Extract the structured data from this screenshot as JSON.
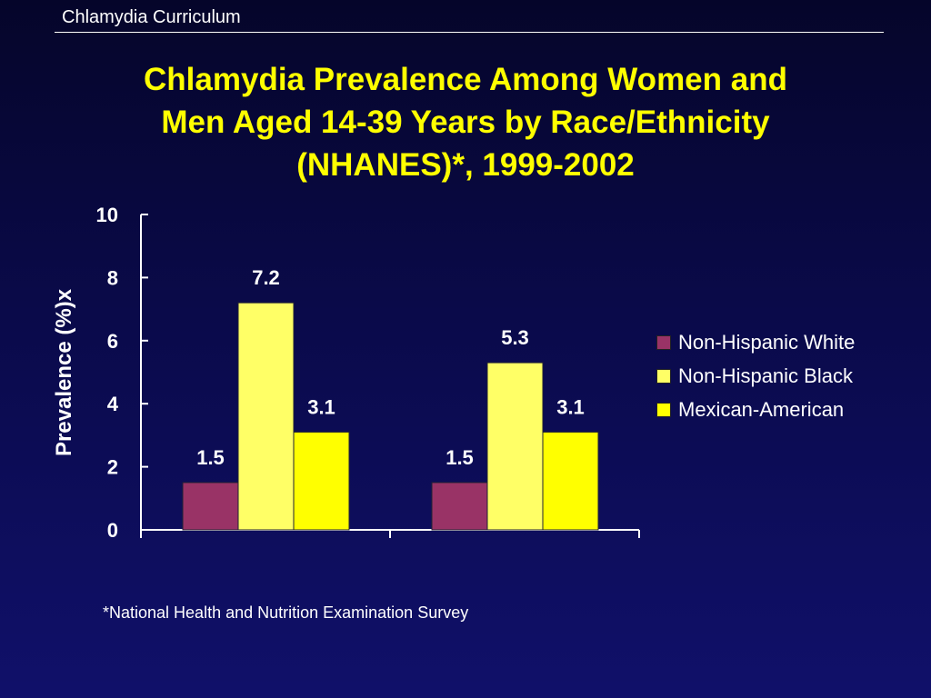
{
  "header": {
    "text": "Chlamydia Curriculum"
  },
  "title_lines": [
    "Chlamydia Prevalence Among Women and",
    "Men Aged 14-39 Years by Race/Ethnicity",
    "(NHANES)*, 1999-2002"
  ],
  "footnote": "*National Health and Nutrition Examination Survey",
  "chart_data": {
    "type": "bar",
    "categories": [
      "",
      ""
    ],
    "series": [
      {
        "name": "Non-Hispanic White",
        "values": [
          1.5,
          1.5
        ],
        "color": "#993366"
      },
      {
        "name": "Non-Hispanic Black",
        "values": [
          7.2,
          5.3
        ],
        "color": "#ffff66"
      },
      {
        "name": "Mexican-American",
        "values": [
          3.1,
          3.1
        ],
        "color": "#ffff00"
      }
    ],
    "data_labels": [
      [
        "1.5",
        "1.5"
      ],
      [
        "7.2",
        "5.3"
      ],
      [
        "3.1",
        "3.1"
      ]
    ],
    "xlabel": "",
    "ylabel": "Prevalence (%)x",
    "ylim": [
      0,
      10
    ],
    "yticks": [
      "0",
      "2",
      "4",
      "6",
      "8",
      "10"
    ],
    "grid": false,
    "legend_position": "right"
  }
}
